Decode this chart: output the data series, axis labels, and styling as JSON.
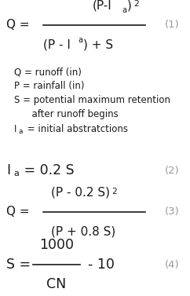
{
  "bg_color": "#ffffff",
  "text_color": "#1a1a1a",
  "eq_number_color": "#999999",
  "legend_lines": [
    "Q = runoff (in)",
    "P = rainfall (in)",
    "S = potential maximum retention",
    "      after runoff begins",
    "Ia = initial abstratctions"
  ],
  "eq1_number": "(1)",
  "eq2_number": "(2)",
  "eq3_number": "(3)",
  "eq4_number": "(4)",
  "fig_width": 2.42,
  "fig_height": 3.77,
  "dpi": 100,
  "main_fontsize": 11.0,
  "legend_fontsize": 8.5,
  "eq_num_fontsize": 9.5
}
